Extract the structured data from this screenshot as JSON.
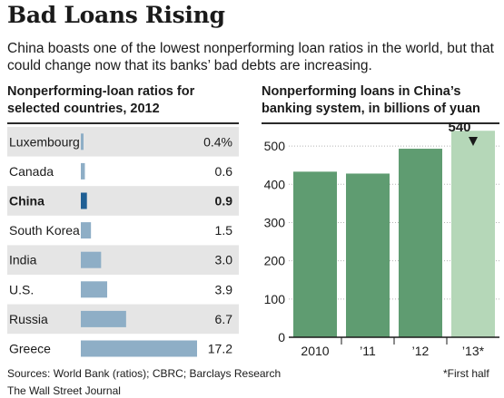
{
  "header": {
    "title": "Bad Loans Rising",
    "subtitle": "China boasts one of the lowest nonperforming loan ratios in the world, but that could change now that its banks’ bad debts are increasing."
  },
  "colors": {
    "bar_blue": "#8eaec6",
    "bar_blue_highlight": "#1f5f94",
    "row_shade": "#e5e5e5",
    "bar_green": "#5f9c71",
    "bar_green_light": "#b5d7b8",
    "grid": "#b5b5b5"
  },
  "chart_data": [
    {
      "type": "bar",
      "orientation": "horizontal",
      "title": "Nonperforming-loan ratios for selected countries, 2012",
      "categories": [
        "Luxembourg",
        "Canada",
        "China",
        "South Korea",
        "India",
        "U.S.",
        "Russia",
        "Greece"
      ],
      "values": [
        0.4,
        0.6,
        0.9,
        1.5,
        3.0,
        3.9,
        6.7,
        17.2
      ],
      "value_labels": [
        "0.4%",
        "0.6",
        "0.9",
        "1.5",
        "3.0",
        "3.9",
        "6.7",
        "17.2"
      ],
      "highlight": "China",
      "xlim": [
        0,
        17.2
      ]
    },
    {
      "type": "bar",
      "title": "Nonperforming loans in China’s banking system, in billions of yuan",
      "categories": [
        "2010",
        "’11",
        "’12",
        "’13*"
      ],
      "values": [
        433,
        428,
        493,
        540
      ],
      "annotation": {
        "category": "’13*",
        "label": "540"
      },
      "ylim": [
        0,
        550
      ],
      "yticks": [
        0,
        100,
        200,
        300,
        400,
        500
      ],
      "ytick_labels": [
        "0",
        "100",
        "200",
        "300",
        "400",
        "500"
      ],
      "grid": true
    }
  ],
  "footer": {
    "sources": "Sources: World Bank (ratios); CBRC; Barclays Research",
    "footnote": "*First half",
    "credit": "The Wall Street Journal"
  }
}
